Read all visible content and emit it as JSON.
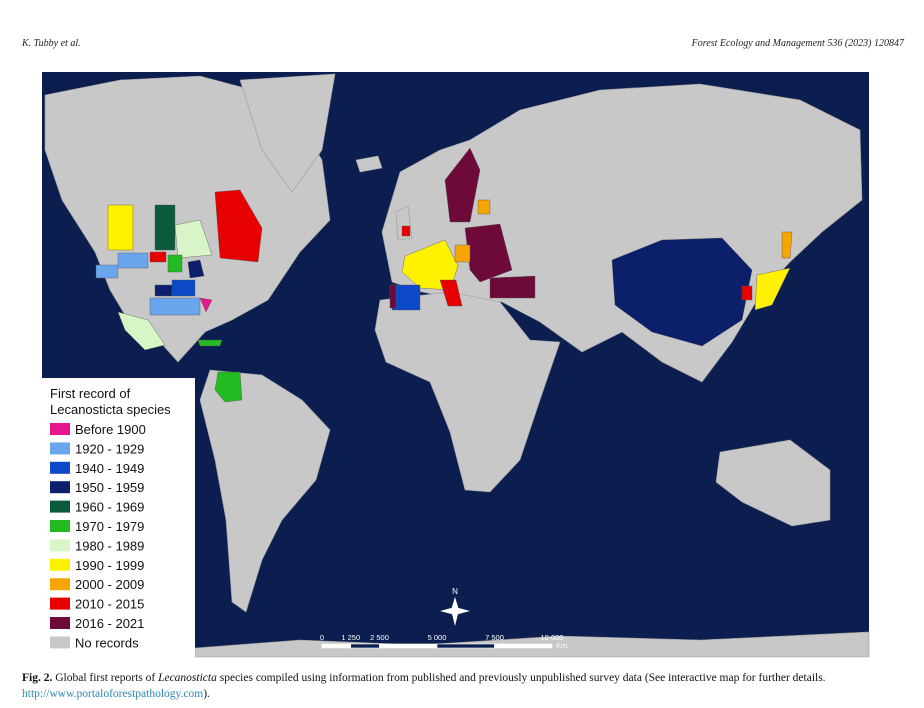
{
  "header": {
    "left": "K. Tubby et al.",
    "right": "Forest Ecology and Management 536 (2023) 120847"
  },
  "figure": {
    "legend": {
      "title": [
        "First record of",
        "Lecanosticta species"
      ],
      "items": [
        {
          "label": "Before 1900",
          "color": "#e6168c"
        },
        {
          "label": "1920 - 1929",
          "color": "#6aa6ee"
        },
        {
          "label": "1940 - 1949",
          "color": "#0b49c8"
        },
        {
          "label": "1950 - 1959",
          "color": "#0b1f6b"
        },
        {
          "label": "1960 - 1969",
          "color": "#0b5a3a"
        },
        {
          "label": "1970 - 1979",
          "color": "#22bb22"
        },
        {
          "label": "1980 - 1989",
          "color": "#d8f5c8"
        },
        {
          "label": "1990 - 1999",
          "color": "#fff100"
        },
        {
          "label": "2000 - 2009",
          "color": "#f7a500"
        },
        {
          "label": "2010 - 2015",
          "color": "#e60000"
        },
        {
          "label": "2016 - 2021",
          "color": "#6e0a3a"
        },
        {
          "label": "No records",
          "color": "#c8c8c8"
        }
      ]
    },
    "compass": "N",
    "scale_bar": {
      "labels": [
        "0",
        "1 250",
        "2 500",
        "5 000",
        "7 500",
        "10 000"
      ],
      "unit": "Km"
    }
  },
  "caption": {
    "label": "Fig. 2.",
    "text_before": "Global first reports of",
    "italic": "Lecanosticta",
    "text_after": "species compiled using information from published and previously unpublished survey data (See interactive map for further details.",
    "link": "http://www.portaloforestpathology.com",
    "end": ")."
  }
}
